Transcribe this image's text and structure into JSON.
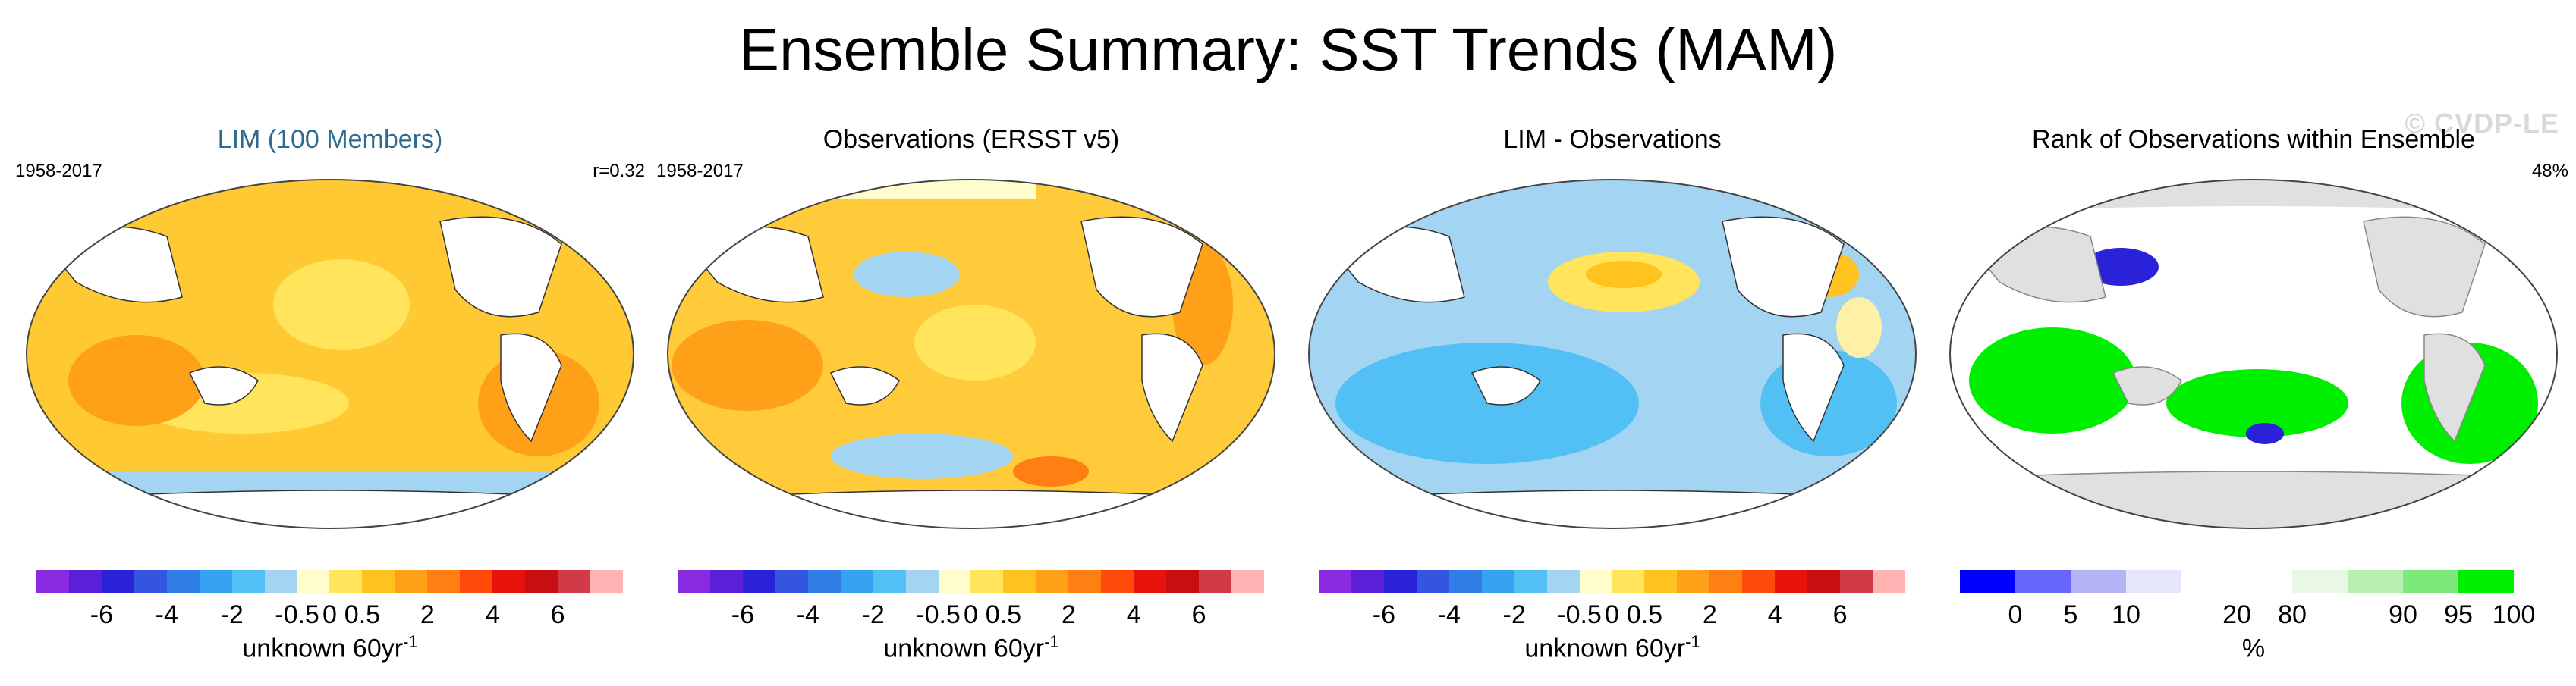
{
  "main_title": "Ensemble Summary: SST Trends (MAM)",
  "watermark": "© CVDP-LE",
  "panels": [
    {
      "title": "LIM (100 Members)",
      "title_color": "#2e6b8f",
      "left_note": "1958-2017",
      "right_note": "r=0.32",
      "colorbar": {
        "colors": [
          "#8a2be2",
          "#5a1fd6",
          "#2a22d8",
          "#3355e0",
          "#2f7ee8",
          "#34a2f0",
          "#53c0f5",
          "#a3d4f2",
          "#fffdcc",
          "#ffe45c",
          "#ffc21e",
          "#ffa019",
          "#ff7f13",
          "#ff4a0a",
          "#e8120c",
          "#c80e10",
          "#d13a46",
          "#ffb3b3"
        ],
        "ticks": [
          "-6",
          "-4",
          "-2",
          "-0.5",
          "0",
          "0.5",
          "2",
          "4",
          "6"
        ],
        "unit": "unknown 60yr",
        "unit_sup": "-1"
      }
    },
    {
      "title": "Observations (ERSST v5)",
      "title_color": "#000000",
      "left_note": "1958-2017",
      "right_note": "",
      "colorbar": {
        "colors": [
          "#8a2be2",
          "#5a1fd6",
          "#2a22d8",
          "#3355e0",
          "#2f7ee8",
          "#34a2f0",
          "#53c0f5",
          "#a3d4f2",
          "#fffdcc",
          "#ffe45c",
          "#ffc21e",
          "#ffa019",
          "#ff7f13",
          "#ff4a0a",
          "#e8120c",
          "#c80e10",
          "#d13a46",
          "#ffb3b3"
        ],
        "ticks": [
          "-6",
          "-4",
          "-2",
          "-0.5",
          "0",
          "0.5",
          "2",
          "4",
          "6"
        ],
        "unit": "unknown 60yr",
        "unit_sup": "-1"
      }
    },
    {
      "title": "LIM - Observations",
      "title_color": "#000000",
      "left_note": "",
      "right_note": "",
      "colorbar": {
        "colors": [
          "#8a2be2",
          "#5a1fd6",
          "#2a22d8",
          "#3355e0",
          "#2f7ee8",
          "#34a2f0",
          "#53c0f5",
          "#a3d4f2",
          "#fffdcc",
          "#ffe45c",
          "#ffc21e",
          "#ffa019",
          "#ff7f13",
          "#ff4a0a",
          "#e8120c",
          "#c80e10",
          "#d13a46",
          "#ffb3b3"
        ],
        "ticks": [
          "-6",
          "-4",
          "-2",
          "-0.5",
          "0",
          "0.5",
          "2",
          "4",
          "6"
        ],
        "unit": "unknown 60yr",
        "unit_sup": "-1"
      }
    },
    {
      "title": "Rank of Observations within Ensemble",
      "title_color": "#000000",
      "left_note": "",
      "right_note": "48%",
      "colorbar": {
        "colors": [
          "#0000ff",
          "#6666ff",
          "#b3b3f5",
          "#e6e6fa",
          "#ffffff",
          "#ffffff",
          "#e8f8e4",
          "#b8f0b0",
          "#7fe87a",
          "#00ee00"
        ],
        "ticks": [
          "0",
          "5",
          "10",
          "20",
          "80",
          "90",
          "95",
          "100"
        ],
        "unit": "%",
        "unit_sup": ""
      }
    }
  ]
}
